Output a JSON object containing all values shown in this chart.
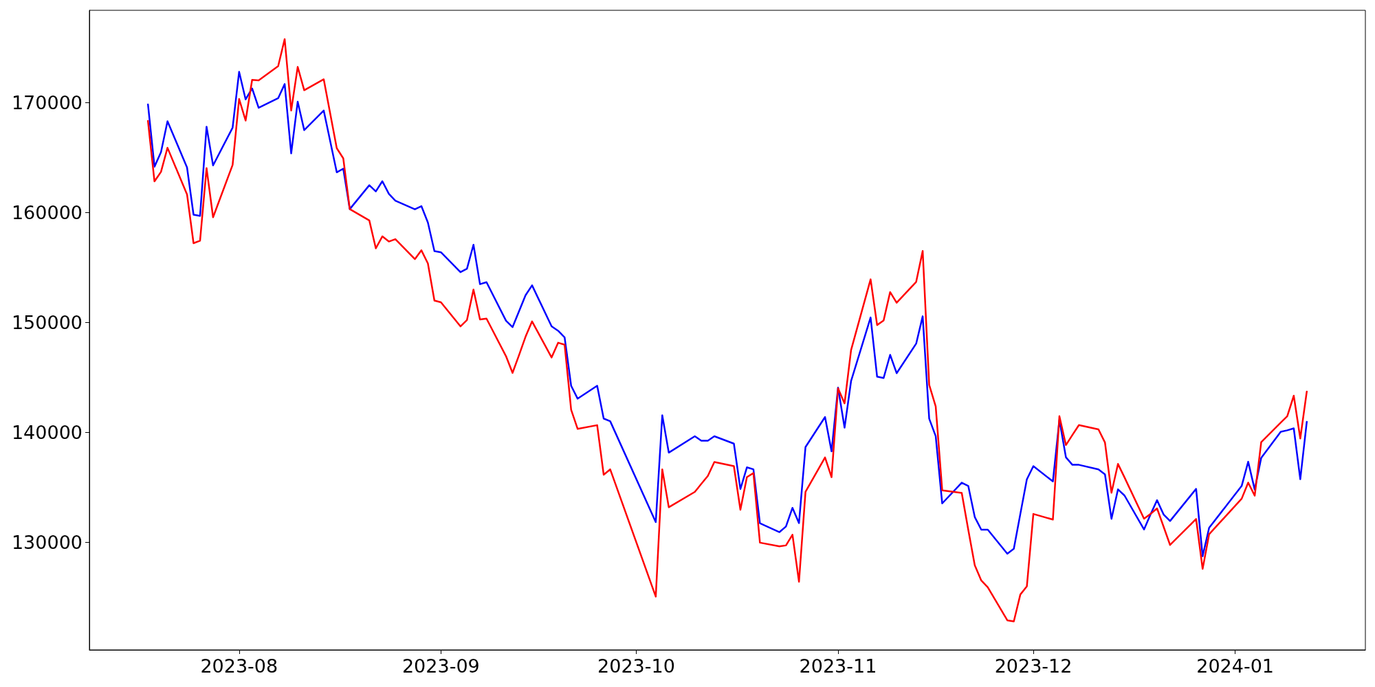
{
  "chart_data": {
    "type": "line",
    "x": [
      "2023-07-18",
      "2023-07-19",
      "2023-07-20",
      "2023-07-21",
      "2023-07-24",
      "2023-07-25",
      "2023-07-26",
      "2023-07-27",
      "2023-07-28",
      "2023-07-31",
      "2023-08-01",
      "2023-08-02",
      "2023-08-03",
      "2023-08-04",
      "2023-08-07",
      "2023-08-08",
      "2023-08-09",
      "2023-08-10",
      "2023-08-11",
      "2023-08-14",
      "2023-08-16",
      "2023-08-17",
      "2023-08-18",
      "2023-08-21",
      "2023-08-22",
      "2023-08-23",
      "2023-08-24",
      "2023-08-25",
      "2023-08-28",
      "2023-08-29",
      "2023-08-30",
      "2023-08-31",
      "2023-09-01",
      "2023-09-04",
      "2023-09-05",
      "2023-09-06",
      "2023-09-07",
      "2023-09-08",
      "2023-09-11",
      "2023-09-12",
      "2023-09-13",
      "2023-09-14",
      "2023-09-15",
      "2023-09-18",
      "2023-09-19",
      "2023-09-20",
      "2023-09-21",
      "2023-09-22",
      "2023-09-25",
      "2023-09-26",
      "2023-09-27",
      "2023-10-04",
      "2023-10-05",
      "2023-10-06",
      "2023-10-10",
      "2023-10-11",
      "2023-10-12",
      "2023-10-13",
      "2023-10-16",
      "2023-10-17",
      "2023-10-18",
      "2023-10-19",
      "2023-10-20",
      "2023-10-23",
      "2023-10-24",
      "2023-10-25",
      "2023-10-26",
      "2023-10-27",
      "2023-10-30",
      "2023-10-31",
      "2023-11-01",
      "2023-11-02",
      "2023-11-03",
      "2023-11-06",
      "2023-11-07",
      "2023-11-08",
      "2023-11-09",
      "2023-11-10",
      "2023-11-13",
      "2023-11-14",
      "2023-11-15",
      "2023-11-16",
      "2023-11-17",
      "2023-11-20",
      "2023-11-21",
      "2023-11-22",
      "2023-11-23",
      "2023-11-24",
      "2023-11-27",
      "2023-11-28",
      "2023-11-29",
      "2023-11-30",
      "2023-12-01",
      "2023-12-04",
      "2023-12-05",
      "2023-12-06",
      "2023-12-07",
      "2023-12-08",
      "2023-12-11",
      "2023-12-12",
      "2023-12-13",
      "2023-12-14",
      "2023-12-15",
      "2023-12-18",
      "2023-12-19",
      "2023-12-20",
      "2023-12-21",
      "2023-12-22",
      "2023-12-26",
      "2023-12-27",
      "2023-12-28",
      "2024-01-02",
      "2024-01-03",
      "2024-01-04",
      "2024-01-05",
      "2024-01-08",
      "2024-01-09",
      "2024-01-10",
      "2024-01-11",
      "2024-01-12"
    ],
    "series": [
      {
        "color": "#0000ff",
        "values": [
          169840,
          164170,
          165490,
          168300,
          164100,
          159800,
          159690,
          167810,
          164290,
          167720,
          172800,
          170290,
          171290,
          169530,
          170400,
          171690,
          165380,
          170090,
          167500,
          169280,
          163660,
          163990,
          160310,
          162480,
          161920,
          162850,
          161700,
          161070,
          160290,
          160580,
          159080,
          156490,
          156380,
          154570,
          154890,
          157070,
          153480,
          153660,
          150150,
          149570,
          151020,
          152470,
          153370,
          149640,
          149240,
          148640,
          144240,
          143060,
          144240,
          141250,
          141010,
          131830,
          141550,
          138150,
          139640,
          139240,
          139240,
          139640,
          138970,
          134840,
          136810,
          136630,
          131720,
          130920,
          131430,
          133130,
          131740,
          138660,
          141390,
          138260,
          144070,
          140420,
          144660,
          150450,
          145060,
          144940,
          147050,
          145380,
          148070,
          150560,
          141240,
          139650,
          133530,
          135420,
          135120,
          132290,
          131140,
          131140,
          128950,
          129410,
          132570,
          135720,
          136920,
          135530,
          141120,
          137730,
          137040,
          137040,
          136620,
          136170,
          132130,
          134810,
          134250,
          131160,
          132530,
          133820,
          132530,
          131930,
          134850,
          128720,
          131310,
          135120,
          137320,
          134790,
          137680,
          140050,
          140180,
          140360,
          135730,
          140960
        ]
      },
      {
        "color": "#ff0000",
        "values": [
          168330,
          162830,
          163700,
          165890,
          161650,
          157210,
          157430,
          164040,
          159570,
          164330,
          170330,
          168370,
          172070,
          172020,
          173320,
          175780,
          169280,
          173250,
          171130,
          172120,
          165850,
          164930,
          160310,
          159280,
          156740,
          157830,
          157360,
          157580,
          155760,
          156560,
          155360,
          151990,
          151830,
          149640,
          150220,
          152990,
          150270,
          150350,
          146920,
          145410,
          147030,
          148700,
          150090,
          146810,
          148150,
          147970,
          142060,
          140310,
          140650,
          136140,
          136630,
          125050,
          136630,
          133180,
          134580,
          135310,
          136030,
          137300,
          136920,
          132950,
          135920,
          136290,
          129960,
          129620,
          129710,
          130680,
          126400,
          134580,
          137710,
          135920,
          144000,
          142630,
          147480,
          153920,
          149760,
          150170,
          152760,
          151790,
          153690,
          156510,
          144320,
          142350,
          134720,
          134490,
          131140,
          127900,
          126520,
          125890,
          122890,
          122790,
          125240,
          125980,
          132570,
          132060,
          141470,
          138840,
          139760,
          140660,
          140270,
          139070,
          134500,
          137120,
          135900,
          132140,
          132570,
          133080,
          131420,
          129750,
          132110,
          127570,
          130730,
          133960,
          135420,
          134230,
          139100,
          140880,
          141460,
          143330,
          139440,
          143710
        ]
      }
    ],
    "xlim": [
      "2023-07-09",
      "2024-01-21"
    ],
    "xticks": [
      "2023-08",
      "2023-09",
      "2023-10",
      "2023-11",
      "2023-12",
      "2024-01"
    ],
    "ylim": [
      120200,
      178400
    ],
    "yticks": [
      130000,
      140000,
      150000,
      160000,
      170000
    ],
    "grid": false,
    "marker": "none",
    "line_style": "solid"
  }
}
